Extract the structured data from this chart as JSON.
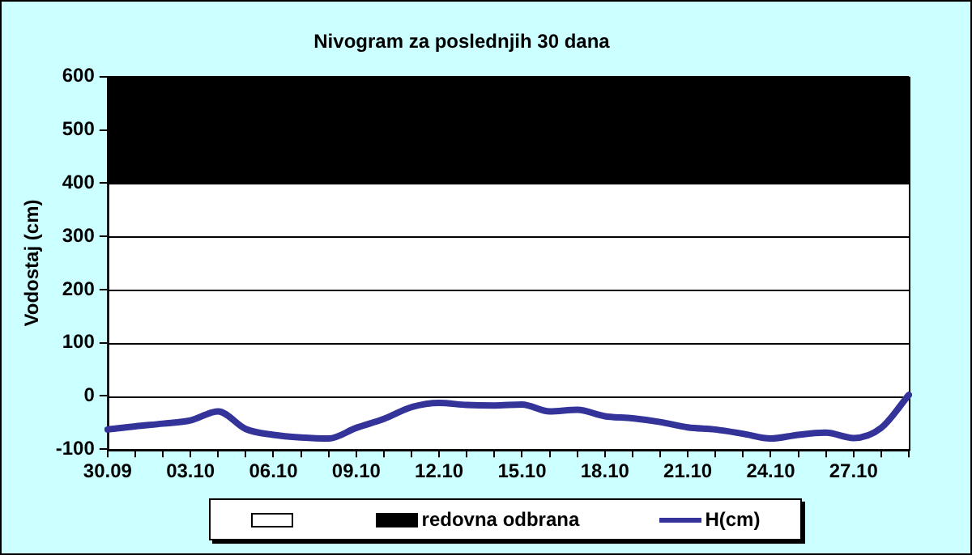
{
  "chart_data": {
    "type": "line",
    "title": "Nivogram za poslednjih 30 dana",
    "ylabel": "Vodostaj (cm)",
    "categories": [
      "30.09",
      null,
      null,
      "03.10",
      null,
      null,
      "06.10",
      null,
      null,
      "09.10",
      null,
      null,
      "12.10",
      null,
      null,
      "15.10",
      null,
      null,
      "18.10",
      null,
      null,
      "21.10",
      null,
      null,
      "24.10",
      null,
      null,
      "27.10",
      null,
      null
    ],
    "series": [
      {
        "name": "H(cm)",
        "color": "#333399",
        "values": [
          -63,
          -57,
          -52,
          -46,
          -29,
          -62,
          -73,
          -78,
          -80,
          -60,
          -43,
          -21,
          -13,
          -17,
          -18,
          -16,
          -29,
          -26,
          -38,
          -42,
          -49,
          -59,
          -63,
          -71,
          -80,
          -73,
          -69,
          -79,
          -60,
          2
        ]
      }
    ],
    "ylim": [
      -100,
      600
    ],
    "yticks": [
      -100,
      0,
      100,
      200,
      300,
      400,
      500,
      600
    ],
    "grid": "y",
    "legend": "bottom",
    "marker": "none",
    "line_style": "solid",
    "bands": [
      {
        "axis": "y",
        "from": -100,
        "to": 400,
        "color": "#ffffff"
      },
      {
        "axis": "y",
        "from": 400,
        "to": 600,
        "label": "redovna odbrana",
        "color": "#000000"
      }
    ]
  }
}
